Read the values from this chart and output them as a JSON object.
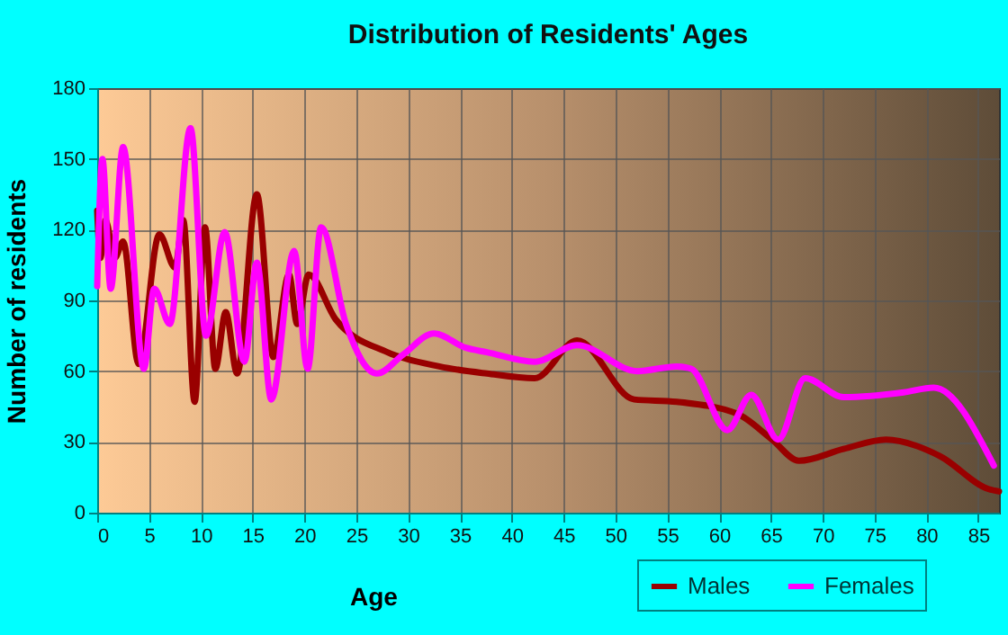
{
  "chart_data": {
    "type": "line",
    "title": "Distribution of Residents' Ages",
    "xlabel": "Age",
    "ylabel": "Number of residents",
    "xlim": [
      0,
      87
    ],
    "xticks": [
      0,
      5,
      10,
      15,
      20,
      25,
      30,
      35,
      40,
      45,
      50,
      55,
      60,
      65,
      70,
      75,
      80,
      85
    ],
    "ylim": [
      0,
      180
    ],
    "yticks": [
      0,
      30,
      60,
      90,
      120,
      150,
      180
    ],
    "grid": true,
    "legend": "bottom right",
    "marker": "none",
    "line_style": "solid",
    "series": [
      {
        "name": "Males",
        "color": "#990000",
        "x": [
          0,
          0.3,
          0.8,
          1.7,
          2.5,
          4,
          6,
          7.5,
          8.3,
          9.4,
          10.4,
          11.4,
          12.4,
          13.5,
          15.4,
          17,
          18.5,
          19.3,
          20.4,
          23,
          28,
          33,
          37.6,
          42.2,
          46.3,
          51.8,
          55.9,
          61.7,
          65.1,
          67.7,
          72,
          76.1,
          81.3,
          86,
          87
        ],
        "values": [
          128,
          108,
          124,
          108,
          115,
          63,
          118,
          104,
          124,
          47,
          121,
          61,
          85,
          59,
          135,
          66,
          101,
          80,
          101,
          82,
          68,
          62,
          59,
          57,
          73,
          48,
          47,
          42,
          31,
          22,
          27,
          31,
          24,
          10,
          9
        ]
      },
      {
        "name": "Females",
        "color": "#ff00ff",
        "x": [
          0,
          0.5,
          1.3,
          2.5,
          4.5,
          5.5,
          7,
          9,
          10.5,
          12.3,
          14.2,
          15.4,
          16.8,
          19,
          20.3,
          21.6,
          24,
          27,
          29.5,
          32.5,
          35.5,
          37.6,
          42.2,
          46.3,
          52.1,
          55.9,
          57.3,
          60.8,
          63.1,
          65.7,
          68.3,
          72,
          77.8,
          80.7,
          86.5
        ],
        "values": [
          96,
          150,
          95,
          155,
          61,
          95,
          80,
          163,
          75,
          119,
          64,
          106,
          48,
          111,
          61,
          121,
          80,
          59,
          67,
          76,
          70,
          68,
          64,
          71,
          60,
          62,
          61,
          35,
          50,
          31,
          57,
          49,
          51,
          53,
          20
        ]
      }
    ]
  }
}
